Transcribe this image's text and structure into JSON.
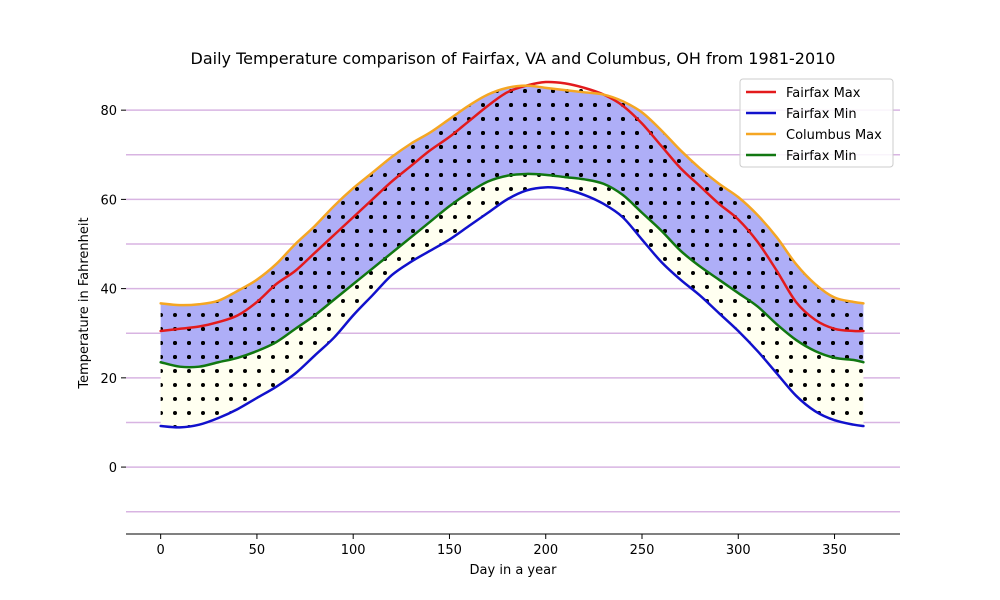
{
  "chart_data": {
    "type": "line",
    "title": "Daily Temperature comparison of Fairfax, VA and Columbus, OH from 1981-2010",
    "xlabel": "Day in a year",
    "ylabel": "Temperature in Fahrenheit",
    "xlim": [
      -18,
      384
    ],
    "ylim": [
      -15,
      89
    ],
    "xticks": [
      0,
      50,
      100,
      150,
      200,
      250,
      300,
      350
    ],
    "yticks": [
      0,
      20,
      40,
      60,
      80
    ],
    "grid_lines_y": [
      -10,
      0,
      10,
      20,
      30,
      40,
      50,
      60,
      70,
      80
    ],
    "grid": "horizontal",
    "grid_color": "#d8b4e2",
    "legend_position": "top-right",
    "fills": [
      {
        "between": [
          "Columbus Max",
          "Fairfax Min (Columbus)"
        ],
        "color": "#aeaef7",
        "pattern": "dots"
      },
      {
        "between": [
          "Fairfax Max",
          "Fairfax Min"
        ],
        "color": "#fffff0",
        "pattern": "dots"
      }
    ],
    "series": [
      {
        "name": "Fairfax Max",
        "color": "#e31a1c",
        "x": [
          0,
          10,
          20,
          30,
          40,
          50,
          60,
          70,
          80,
          90,
          100,
          110,
          120,
          130,
          140,
          150,
          160,
          170,
          180,
          190,
          200,
          210,
          220,
          230,
          240,
          250,
          260,
          270,
          280,
          290,
          300,
          310,
          320,
          330,
          340,
          350,
          360,
          365
        ],
        "y": [
          30.5,
          31,
          31.5,
          32.5,
          34,
          37,
          41,
          44,
          48,
          52,
          56,
          60,
          64,
          67.5,
          71,
          74,
          77.5,
          81,
          84,
          85.5,
          86.3,
          86,
          85,
          83.5,
          81,
          77,
          72,
          67,
          63,
          59,
          55.5,
          50.5,
          44,
          37,
          33,
          31,
          30.5,
          30.5
        ]
      },
      {
        "name": "Fairfax Min",
        "color": "#1111cc",
        "x": [
          0,
          10,
          20,
          30,
          40,
          50,
          60,
          70,
          80,
          90,
          100,
          110,
          120,
          130,
          140,
          150,
          160,
          170,
          180,
          190,
          200,
          210,
          220,
          230,
          240,
          250,
          260,
          270,
          280,
          290,
          300,
          310,
          320,
          330,
          340,
          350,
          360,
          365
        ],
        "y": [
          9.2,
          8.9,
          9.5,
          11,
          13,
          15.5,
          18,
          21,
          25,
          29,
          34,
          38.5,
          43,
          46,
          48.5,
          51,
          54,
          57,
          60,
          62,
          62.7,
          62.3,
          61,
          59,
          56,
          51,
          46,
          42,
          38.5,
          34.5,
          30.5,
          26,
          21,
          16,
          12.5,
          10.5,
          9.5,
          9.2
        ]
      },
      {
        "name": "Columbus Max",
        "color": "#f5a623",
        "x": [
          0,
          10,
          20,
          30,
          40,
          50,
          60,
          70,
          80,
          90,
          100,
          110,
          120,
          130,
          140,
          150,
          160,
          170,
          180,
          190,
          200,
          210,
          220,
          230,
          240,
          250,
          260,
          270,
          280,
          290,
          300,
          310,
          320,
          330,
          340,
          350,
          360,
          365
        ],
        "y": [
          36.7,
          36.3,
          36.5,
          37.3,
          39.5,
          42,
          45.5,
          50,
          54,
          58.5,
          62.5,
          66,
          69.5,
          72.5,
          75,
          78,
          81,
          83.5,
          85,
          85.5,
          85,
          84.5,
          84,
          83.5,
          82,
          79.5,
          75.5,
          71,
          67,
          63.5,
          60.5,
          56.5,
          51.5,
          45.5,
          41,
          38,
          37,
          36.7
        ]
      },
      {
        "name": "Fairfax Min",
        "color": "#117711",
        "x": [
          0,
          10,
          20,
          30,
          40,
          50,
          60,
          70,
          80,
          90,
          100,
          110,
          120,
          130,
          140,
          150,
          160,
          170,
          180,
          190,
          200,
          210,
          220,
          230,
          240,
          250,
          260,
          270,
          280,
          290,
          300,
          310,
          320,
          330,
          340,
          350,
          360,
          365
        ],
        "y": [
          23.5,
          22.5,
          22.5,
          23.5,
          24.5,
          26,
          28,
          31,
          34,
          37.5,
          41,
          44.5,
          48,
          51.5,
          55,
          58.5,
          61.5,
          64,
          65.3,
          65.7,
          65.5,
          65,
          64.5,
          63.5,
          61,
          57,
          53,
          48.5,
          45,
          42,
          39,
          36,
          32,
          28.5,
          26,
          24.5,
          24,
          23.5
        ]
      }
    ]
  }
}
